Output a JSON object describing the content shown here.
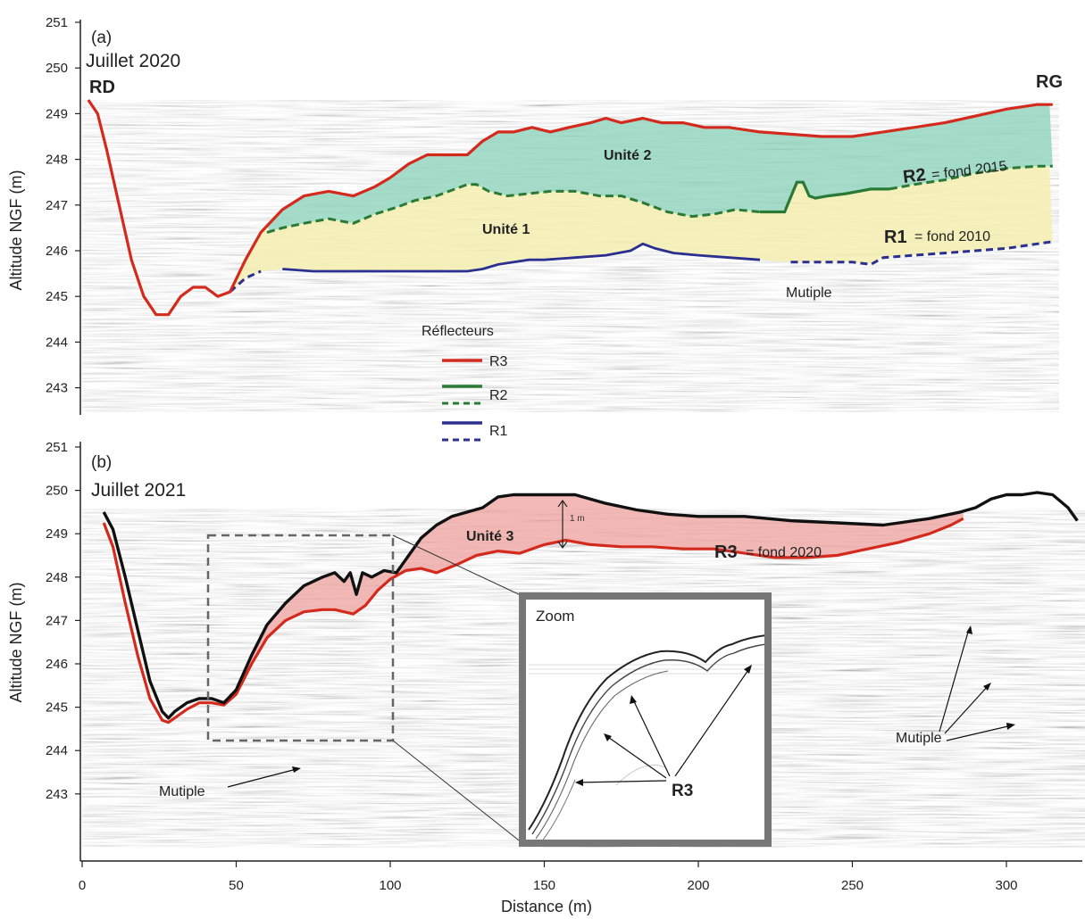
{
  "figure": {
    "x_axis_label": "Distance (m)",
    "left": "RD",
    "right": "RG"
  },
  "legend": {
    "title": "Réflecteurs",
    "items": [
      "R3",
      "R2",
      "R1"
    ]
  },
  "colors": {
    "r3": "#d42a1e",
    "r2": "#2a7a36",
    "r1": "#2b2f8f",
    "unit1": "#f4eeb0",
    "unit2": "#8fd3bd",
    "unit3": "#eda29e",
    "bed2021": "#111111"
  },
  "panel_a": {
    "tag": "(a)",
    "date": "Juillet 2020",
    "ylabel": "Altitude NGF (m)",
    "unit1_label": "Unité 1",
    "unit2_label": "Unité 2",
    "r2_tag": "R2",
    "r2_note": "= fond 2015",
    "r1_tag": "R1",
    "r1_note": "= fond 2010",
    "multiple_label": "Mutiple"
  },
  "panel_b": {
    "tag": "(b)",
    "date": "Juillet 2021",
    "ylabel": "Altitude NGF (m)",
    "unit3_label": "Unité 3",
    "r3_tag": "R3",
    "r3_note": "= fond 2020",
    "one_m": "1 m",
    "zoom_label": "Zoom",
    "zoom_r3": "R3",
    "multiple_label_left": "Mutiple",
    "multiple_label_right": "Mutiple"
  },
  "chart_data": [
    {
      "type": "line",
      "title": "(a) Juillet 2020",
      "xlabel": "Distance (m)",
      "ylabel": "Altitude NGF (m)",
      "xlim": [
        0,
        325
      ],
      "ylim": [
        242.5,
        251.3
      ],
      "x_ticks": [
        0,
        50,
        100,
        150,
        200,
        250,
        300
      ],
      "y_ticks": [
        243,
        244,
        245,
        246,
        247,
        248,
        249,
        250,
        251
      ],
      "series": [
        {
          "name": "R3",
          "x": [
            2,
            5,
            8,
            12,
            16,
            20,
            24,
            28,
            32,
            36,
            40,
            44,
            48,
            53,
            58,
            65,
            72,
            80,
            88,
            95,
            100,
            106,
            112,
            118,
            125,
            130,
            135,
            140,
            146,
            152,
            158,
            165,
            170,
            175,
            182,
            188,
            195,
            202,
            210,
            220,
            230,
            240,
            250,
            260,
            270,
            280,
            290,
            300,
            310,
            315
          ],
          "y": [
            249.3,
            249.0,
            248.2,
            247.0,
            245.8,
            245.0,
            244.6,
            244.6,
            245.0,
            245.2,
            245.2,
            245.0,
            245.1,
            245.8,
            246.4,
            246.9,
            247.2,
            247.3,
            247.2,
            247.4,
            247.6,
            247.9,
            248.1,
            248.1,
            248.1,
            248.4,
            248.6,
            248.6,
            248.7,
            248.6,
            248.7,
            248.8,
            248.9,
            248.8,
            248.9,
            248.8,
            248.8,
            248.7,
            248.7,
            248.6,
            248.55,
            248.5,
            248.5,
            248.6,
            248.7,
            248.8,
            248.95,
            249.1,
            249.2,
            249.2
          ]
        },
        {
          "name": "R2",
          "x": [
            60,
            65,
            72,
            80,
            88,
            95,
            102,
            108,
            115,
            121,
            125,
            128,
            132,
            138,
            145,
            152,
            160,
            168,
            175,
            182,
            190,
            198,
            205,
            212,
            220,
            228,
            232,
            234,
            236,
            238,
            242,
            248,
            256,
            262,
            270,
            280,
            290,
            300,
            310,
            315
          ],
          "y": [
            246.4,
            246.5,
            246.6,
            246.7,
            246.6,
            246.8,
            246.95,
            247.1,
            247.2,
            247.35,
            247.45,
            247.45,
            247.3,
            247.2,
            247.25,
            247.3,
            247.3,
            247.2,
            247.2,
            247.05,
            246.85,
            246.75,
            246.8,
            246.9,
            246.85,
            246.85,
            247.5,
            247.5,
            247.2,
            247.15,
            247.2,
            247.25,
            247.35,
            247.35,
            247.45,
            247.55,
            247.7,
            247.8,
            247.85,
            247.85
          ]
        },
        {
          "name": "R1",
          "x": [
            48,
            53,
            58,
            65,
            75,
            85,
            95,
            105,
            115,
            125,
            130,
            135,
            140,
            145,
            150,
            160,
            170,
            178,
            182,
            186,
            192,
            200,
            210,
            220,
            230,
            240,
            250,
            256,
            260,
            270,
            280,
            290,
            300,
            310,
            315
          ],
          "y": [
            245.1,
            245.4,
            245.55,
            245.6,
            245.55,
            245.55,
            245.55,
            245.55,
            245.55,
            245.55,
            245.6,
            245.7,
            245.75,
            245.8,
            245.8,
            245.85,
            245.9,
            246.0,
            246.15,
            246.05,
            245.95,
            245.9,
            245.85,
            245.8,
            245.75,
            245.75,
            245.75,
            245.7,
            245.85,
            245.9,
            245.95,
            246.0,
            246.05,
            246.15,
            246.2
          ]
        }
      ]
    },
    {
      "type": "line",
      "title": "(b) Juillet 2021",
      "xlabel": "Distance (m)",
      "ylabel": "Altitude NGF (m)",
      "xlim": [
        0,
        325
      ],
      "ylim": [
        242.3,
        251.3
      ],
      "x_ticks": [
        0,
        50,
        100,
        150,
        200,
        250,
        300
      ],
      "y_ticks": [
        243,
        244,
        245,
        246,
        247,
        248,
        249,
        250,
        251
      ],
      "series": [
        {
          "x": [
            7,
            10,
            14,
            18,
            22,
            26,
            28,
            30,
            34,
            38,
            42,
            46,
            50,
            55,
            60,
            66,
            72,
            78,
            82,
            85,
            87,
            89,
            91,
            94,
            98,
            102,
            106,
            110,
            115,
            120,
            125,
            130,
            135,
            140,
            150,
            160,
            170,
            180,
            190,
            200,
            215,
            230,
            245,
            260,
            275,
            285,
            290,
            295,
            300,
            305,
            310,
            315,
            320,
            323
          ],
          "y": [
            249.5,
            249.1,
            248.0,
            246.8,
            245.6,
            244.9,
            244.75,
            244.9,
            245.1,
            245.2,
            245.2,
            245.1,
            245.4,
            246.2,
            246.9,
            247.4,
            247.8,
            248.0,
            248.1,
            247.9,
            248.1,
            247.6,
            248.1,
            248.0,
            248.15,
            248.1,
            248.5,
            248.9,
            249.2,
            249.4,
            249.5,
            249.6,
            249.85,
            249.9,
            249.9,
            249.9,
            249.7,
            249.55,
            249.45,
            249.4,
            249.4,
            249.3,
            249.25,
            249.2,
            249.35,
            249.5,
            249.6,
            249.8,
            249.9,
            249.9,
            249.95,
            249.9,
            249.6,
            249.3
          ]
        },
        {
          "name": "R3",
          "x": [
            7,
            10,
            14,
            18,
            22,
            26,
            28,
            30,
            34,
            38,
            42,
            46,
            50,
            55,
            60,
            66,
            72,
            78,
            82,
            88,
            92,
            96,
            100,
            105,
            110,
            115,
            122,
            128,
            135,
            142,
            150,
            157,
            165,
            175,
            185,
            195,
            205,
            215,
            225,
            235,
            245,
            255,
            265,
            275,
            282,
            286
          ],
          "y": [
            249.25,
            248.7,
            247.4,
            246.2,
            245.2,
            244.7,
            244.65,
            244.75,
            244.95,
            245.1,
            245.1,
            245.05,
            245.3,
            246.0,
            246.6,
            247.0,
            247.2,
            247.25,
            247.25,
            247.15,
            247.35,
            247.7,
            247.95,
            248.15,
            248.2,
            248.1,
            248.3,
            248.5,
            248.6,
            248.55,
            248.75,
            248.85,
            248.75,
            248.7,
            248.7,
            248.65,
            248.65,
            248.55,
            248.45,
            248.45,
            248.5,
            248.65,
            248.8,
            249.0,
            249.2,
            249.35
          ]
        }
      ]
    }
  ]
}
